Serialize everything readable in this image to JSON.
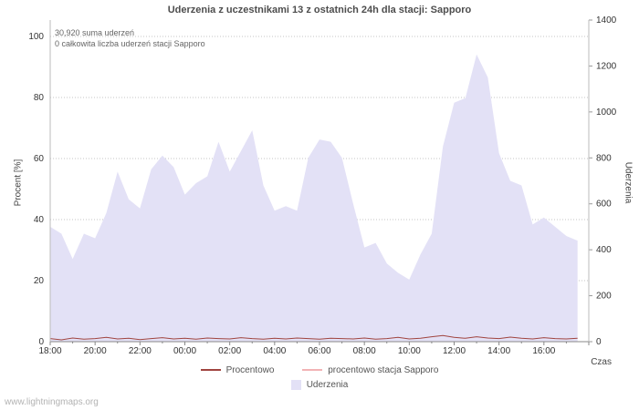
{
  "title": "Uderzenia z uczestnikami 13 z ostatnich 24h dla stacji: Sapporo",
  "annotations": {
    "sum": "30,920 suma uderzeń",
    "station": "0 całkowita liczba uderzeń stacji Sapporo"
  },
  "watermark": "www.lightningmaps.org",
  "axes": {
    "left_label": "Procent   [%]",
    "right_label": "Uderzenia",
    "x_label": "Czas",
    "left_ticks": [
      0,
      20,
      40,
      60,
      80,
      100
    ],
    "right_ticks": [
      0,
      200,
      400,
      600,
      800,
      1000,
      1200,
      1400
    ],
    "x_ticks": [
      "18:00",
      "20:00",
      "22:00",
      "00:00",
      "02:00",
      "04:00",
      "06:00",
      "08:00",
      "10:00",
      "12:00",
      "14:00",
      "16:00"
    ]
  },
  "legend": [
    {
      "label": "Procentowo",
      "color": "#a0443f",
      "type": "line"
    },
    {
      "label": "procentowo stacja Sapporo",
      "color": "#f2b3b5",
      "type": "line"
    },
    {
      "label": "Uderzenia",
      "color": "#e3e1f6",
      "type": "area"
    }
  ],
  "chart_data": {
    "type": "area",
    "title": "Uderzenia z uczestnikami 13 z ostatnich 24h dla stacji: Sapporo",
    "xlabel": "Czas",
    "ylabel_left": "Procent [%]",
    "ylabel_right": "Uderzenia",
    "ylim_left": [
      0,
      100
    ],
    "ylim_right": [
      0,
      1400
    ],
    "grid": true,
    "legend_position": "bottom",
    "x": [
      "18:00",
      "18:30",
      "19:00",
      "19:30",
      "20:00",
      "20:30",
      "21:00",
      "21:30",
      "22:00",
      "22:30",
      "23:00",
      "23:30",
      "00:00",
      "00:30",
      "01:00",
      "01:30",
      "02:00",
      "02:30",
      "03:00",
      "03:30",
      "04:00",
      "04:30",
      "05:00",
      "05:30",
      "06:00",
      "06:30",
      "07:00",
      "07:30",
      "08:00",
      "08:30",
      "09:00",
      "09:30",
      "10:00",
      "10:30",
      "11:00",
      "11:30",
      "12:00",
      "12:30",
      "13:00",
      "13:30",
      "14:00",
      "14:30",
      "15:00",
      "15:30",
      "16:00",
      "16:30",
      "17:00",
      "17:30"
    ],
    "series": [
      {
        "name": "Uderzenia",
        "axis": "right",
        "style": "area",
        "values": [
          500,
          470,
          360,
          470,
          450,
          560,
          740,
          620,
          580,
          750,
          810,
          760,
          640,
          690,
          720,
          870,
          740,
          830,
          920,
          680,
          570,
          590,
          570,
          800,
          880,
          870,
          800,
          600,
          410,
          430,
          340,
          300,
          270,
          380,
          470,
          850,
          1040,
          1060,
          1250,
          1150,
          820,
          700,
          680,
          510,
          540,
          500,
          460,
          440
        ]
      },
      {
        "name": "Procentowo",
        "axis": "left",
        "style": "line",
        "values": [
          1.0,
          0.6,
          1.2,
          0.8,
          1.0,
          1.4,
          0.9,
          1.1,
          0.7,
          1.0,
          1.3,
          0.9,
          1.1,
          0.8,
          1.2,
          1.0,
          0.9,
          1.3,
          1.0,
          0.8,
          1.1,
          0.9,
          1.2,
          1.0,
          0.8,
          1.1,
          1.0,
          0.9,
          1.2,
          0.8,
          1.0,
          1.4,
          0.9,
          1.1,
          1.6,
          2.0,
          1.4,
          1.1,
          1.6,
          1.2,
          1.0,
          1.5,
          1.1,
          0.9,
          1.3,
          1.0,
          0.9,
          1.1
        ]
      },
      {
        "name": "procentowo stacja Sapporo",
        "axis": "left",
        "style": "line",
        "values": [
          0,
          0,
          0,
          0,
          0,
          0,
          0,
          0,
          0,
          0,
          0,
          0,
          0,
          0,
          0,
          0,
          0,
          0,
          0,
          0,
          0,
          0,
          0,
          0,
          0,
          0,
          0,
          0,
          0,
          0,
          0,
          0,
          0,
          0,
          0,
          0,
          0,
          0,
          0,
          0,
          0,
          0,
          0,
          0,
          0,
          0,
          0,
          0
        ]
      }
    ]
  }
}
